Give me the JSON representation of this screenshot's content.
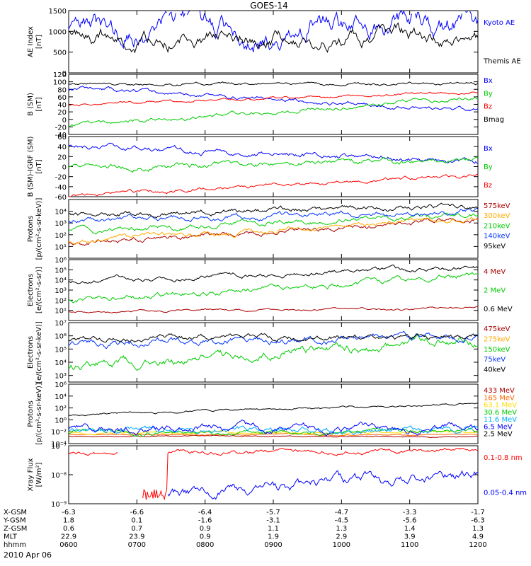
{
  "title": "GOES-14",
  "date_label": "2010 Apr 06",
  "chart_data": [
    {
      "type": "line",
      "id": "ae",
      "ylabel": [
        "AE Index",
        "[nT]"
      ],
      "yscale": "linear",
      "ylim": [
        0,
        1500
      ],
      "yticks": [
        0,
        500,
        1000,
        1500
      ],
      "ytick_labels": [
        "0",
        "500",
        "1000",
        "1500"
      ],
      "series": [
        {
          "name": "Kyoto AE",
          "color": "#0000ff",
          "base": 1000,
          "amp": 260,
          "trend": 150,
          "noise": 0.6,
          "seed": 3
        },
        {
          "name": "Themis AE",
          "color": "#000000",
          "base": 860,
          "amp": 200,
          "trend": -50,
          "noise": 0.5,
          "seed": 7
        }
      ]
    },
    {
      "type": "line",
      "id": "bsm",
      "ylabel": [
        "B (SM)",
        "[nT]"
      ],
      "yscale": "linear",
      "ylim": [
        -40,
        120
      ],
      "yticks": [
        -40,
        -20,
        0,
        20,
        40,
        60,
        80,
        100,
        120
      ],
      "ytick_labels": [
        "-40",
        "-20",
        "0",
        "20",
        "40",
        "60",
        "80",
        "100",
        "120"
      ],
      "series": [
        {
          "name": "Bx",
          "color": "#0000ff",
          "y0": 82,
          "y1": 25,
          "noise": 3,
          "seed": 11
        },
        {
          "name": "By",
          "color": "#00cc00",
          "y0": -18,
          "y1": 58,
          "noise": 3,
          "seed": 12
        },
        {
          "name": "Bz",
          "color": "#ff0000",
          "y0": 40,
          "y1": 72,
          "noise": 2,
          "seed": 13
        },
        {
          "name": "Bmag",
          "color": "#000000",
          "y0": 94,
          "y1": 95,
          "noise": 2,
          "seed": 14
        }
      ]
    },
    {
      "type": "line",
      "id": "bigrf",
      "ylabel": [
        "B (SM)-IGRF (SM)",
        "[nT]"
      ],
      "yscale": "linear",
      "ylim": [
        -60,
        60
      ],
      "yticks": [
        -60,
        -40,
        -20,
        0,
        20,
        40,
        60
      ],
      "ytick_labels": [
        "-60",
        "-40",
        "-20",
        "0",
        "20",
        "40",
        "60"
      ],
      "series": [
        {
          "name": "Bx",
          "color": "#0000ff",
          "y0": 40,
          "y1": 12,
          "noise": 3,
          "seed": 21
        },
        {
          "name": "By",
          "color": "#00cc00",
          "y0": -5,
          "y1": 14,
          "noise": 3,
          "seed": 22
        },
        {
          "name": "Bz",
          "color": "#ff0000",
          "y0": -58,
          "y1": -18,
          "noise": 2,
          "seed": 23
        }
      ]
    },
    {
      "type": "line",
      "id": "protons_low",
      "ylabel": [
        "Protons",
        "[p/(cm²-s-sr-keV)]"
      ],
      "yscale": "log",
      "ylim": [
        0,
        5
      ],
      "yticks": [
        1,
        2,
        3,
        4
      ],
      "ytick_labels": [
        "10¹",
        "10²",
        "10³",
        "10⁴"
      ],
      "series": [
        {
          "name": "575keV",
          "color": "#aa0000",
          "y0": 1.2,
          "y1": 3.3,
          "noise": 0.12,
          "seed": 31
        },
        {
          "name": "300keV",
          "color": "#ffaa00",
          "y0": 1.4,
          "y1": 3.4,
          "noise": 0.12,
          "seed": 32
        },
        {
          "name": "210keV",
          "color": "#00cc00",
          "y0": 2.3,
          "y1": 3.7,
          "noise": 0.12,
          "seed": 33
        },
        {
          "name": "140keV",
          "color": "#0033ff",
          "y0": 3.1,
          "y1": 4.0,
          "noise": 0.12,
          "seed": 34
        },
        {
          "name": "95keV",
          "color": "#000000",
          "y0": 3.7,
          "y1": 4.4,
          "noise": 0.12,
          "seed": 35
        }
      ]
    },
    {
      "type": "line",
      "id": "electrons_mev",
      "ylabel": [
        "Electrons",
        "[e/(cm²-s-sr)]"
      ],
      "yscale": "log",
      "ylim": [
        0,
        6
      ],
      "yticks": [
        1,
        2,
        3,
        4,
        5,
        6
      ],
      "ytick_labels": [
        "10¹",
        "10²",
        "10³",
        "10⁴",
        "10⁵",
        "10⁶"
      ],
      "series": [
        {
          "name": "4 MeV",
          "color": "#aa0000",
          "y0": 0.9,
          "y1": 1.2,
          "noise": 0.06,
          "seed": 41
        },
        {
          "name": "2 MeV",
          "color": "#00cc00",
          "y0": 2.0,
          "y1": 4.4,
          "noise": 0.15,
          "seed": 42
        },
        {
          "name": "0.6 MeV",
          "color": "#000000",
          "y0": 3.9,
          "y1": 5.2,
          "noise": 0.12,
          "seed": 43
        }
      ]
    },
    {
      "type": "line",
      "id": "electrons_kev",
      "ylabel": [
        "Electrons",
        "[e/(cm²-s-sr-keV)]"
      ],
      "yscale": "log",
      "ylim": [
        2.5,
        7
      ],
      "yticks": [
        3,
        4,
        5,
        6,
        7
      ],
      "ytick_labels": [
        "10³",
        "10⁴",
        "10⁵",
        "10⁶",
        "10⁷"
      ],
      "series": [
        {
          "name": "475keV",
          "color": "#aa0000",
          "y0": 0,
          "y1": 0,
          "noise": 0,
          "seed": 51
        },
        {
          "name": "275keV",
          "color": "#ffaa00",
          "y0": 0,
          "y1": 0,
          "noise": 0,
          "seed": 52
        },
        {
          "name": "150keV",
          "color": "#00cc00",
          "y0": 3.7,
          "y1": 5.6,
          "noise": 0.18,
          "seed": 53
        },
        {
          "name": "75keV",
          "color": "#0033ff",
          "y0": 5.3,
          "y1": 6.0,
          "noise": 0.15,
          "seed": 54
        },
        {
          "name": "40keV",
          "color": "#000000",
          "y0": 5.7,
          "y1": 6.0,
          "noise": 0.12,
          "seed": 55
        }
      ]
    },
    {
      "type": "line",
      "id": "protons_high",
      "ylabel": [
        "Protons",
        "[p/(cm²-s-sr-keV)]"
      ],
      "yscale": "log",
      "ylim": [
        -4,
        6
      ],
      "yticks": [
        -4,
        -2,
        0,
        2,
        4,
        6
      ],
      "ytick_labels": [
        "10⁻⁴",
        "10⁻²",
        "10⁰",
        "10²",
        "10⁴",
        "10⁶"
      ],
      "series": [
        {
          "name": "433 MeV",
          "color": "#aa0000",
          "y0": -2.8,
          "y1": -2.8,
          "noise": 0.05,
          "seed": 61
        },
        {
          "name": "165 MeV",
          "color": "#ff6600",
          "y0": -2.5,
          "y1": -2.5,
          "noise": 0.05,
          "seed": 62
        },
        {
          "name": "63.1 MeV",
          "color": "#ffdd00",
          "y0": -2.2,
          "y1": -2.2,
          "noise": 0.1,
          "seed": 63
        },
        {
          "name": "30.6 MeV",
          "color": "#00cc00",
          "y0": -2.0,
          "y1": -2.0,
          "noise": 0.2,
          "seed": 64
        },
        {
          "name": "11.6 MeV",
          "color": "#00aaff",
          "y0": -1.6,
          "y1": -1.6,
          "noise": 0.3,
          "seed": 65
        },
        {
          "name": "6.5 MeV",
          "color": "#0000ff",
          "y0": -1.4,
          "y1": -1.4,
          "noise": 0.35,
          "seed": 66
        },
        {
          "name": "2.5 MeV",
          "color": "#000000",
          "y0": 0.8,
          "y1": 2.7,
          "noise": 0.1,
          "seed": 67
        }
      ]
    },
    {
      "type": "line",
      "id": "xray",
      "ylabel": [
        "Xray Flux",
        "[W/m²]"
      ],
      "yscale": "log",
      "ylim": [
        -9,
        -7
      ],
      "yticks": [
        -9,
        -8,
        -7
      ],
      "ytick_labels": [
        "10⁻⁹",
        "10⁻⁸",
        "10⁻⁷"
      ],
      "series": [
        {
          "name": "0.1-0.8 nm",
          "color": "#ff0000",
          "y0": -7.25,
          "y1": -7.15,
          "noise": 0.04,
          "seed": 71
        },
        {
          "name": "0.05-0.4 nm",
          "color": "#0000ff",
          "y0": -8.9,
          "y1": -8.0,
          "noise": 0.1,
          "seed": 72
        }
      ]
    }
  ],
  "x_axis": {
    "ticks": [
      "0600",
      "0700",
      "0800",
      "0900",
      "1000",
      "1100",
      "1200"
    ],
    "rows": [
      {
        "label": "X-GSM",
        "values": [
          "-6.3",
          "-6.6",
          "-6.4",
          "-5.7",
          "-4.7",
          "-3.3",
          "-1.7"
        ]
      },
      {
        "label": "Y-GSM",
        "values": [
          "1.8",
          "0.1",
          "-1.6",
          "-3.1",
          "-4.5",
          "-5.6",
          "-6.3"
        ]
      },
      {
        "label": "Z-GSM",
        "values": [
          "0.6",
          "0.7",
          "0.9",
          "1.1",
          "1.3",
          "1.4",
          "1.3"
        ]
      },
      {
        "label": "MLT",
        "values": [
          "22.9",
          "23.9",
          "0.9",
          "1.9",
          "2.9",
          "3.9",
          "4.9"
        ]
      },
      {
        "label": "hhmm",
        "values": [
          "0600",
          "0700",
          "0800",
          "0900",
          "1000",
          "1100",
          "1200"
        ]
      }
    ]
  }
}
